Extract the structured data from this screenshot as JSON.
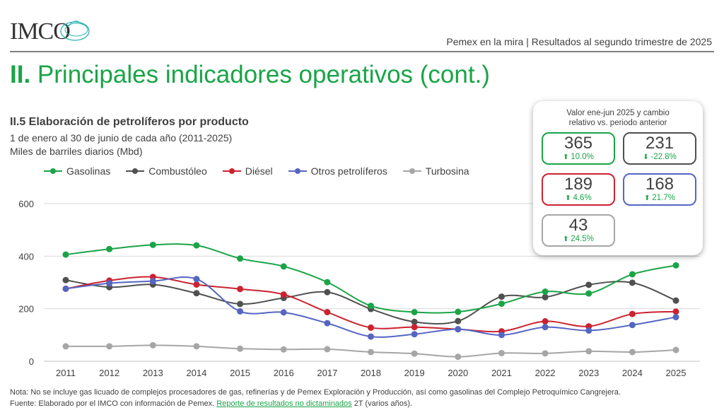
{
  "header": {
    "logo_text": "IMCO",
    "report_title": "Pemex en la mira | Resultados al segundo trimestre de 2025",
    "section_number": "II.",
    "section_title": " Principales indicadores operativos (cont.)"
  },
  "chart_data": {
    "type": "line",
    "title": "II.5 Elaboración de petrolíferos por producto",
    "subtitle_1": "1 de enero al 30 de junio de cada año (2011-2025)",
    "subtitle_2": "Miles de barriles diarios (Mbd)",
    "x": [
      "2011",
      "2012",
      "2013",
      "2014",
      "2015",
      "2016",
      "2017",
      "2018",
      "2019",
      "2020",
      "2021",
      "2022",
      "2023",
      "2024",
      "2025"
    ],
    "ylim": [
      0,
      600
    ],
    "yticks": [
      0,
      200,
      400,
      600
    ],
    "grid": true,
    "legend": "top-left",
    "series": [
      {
        "name": "Gasolinas",
        "color": "#1aa447",
        "values": [
          406,
          427,
          443,
          441,
          391,
          361,
          301,
          211,
          187,
          188,
          219,
          265,
          258,
          331,
          365
        ]
      },
      {
        "name": "Combustóleo",
        "color": "#505050",
        "values": [
          309,
          282,
          292,
          259,
          218,
          241,
          263,
          199,
          150,
          153,
          246,
          244,
          291,
          299,
          231
        ]
      },
      {
        "name": "Diésel",
        "color": "#cc2230",
        "values": [
          276,
          307,
          321,
          292,
          275,
          254,
          187,
          128,
          130,
          122,
          114,
          152,
          133,
          180,
          189
        ]
      },
      {
        "name": "Otros petrolíferos",
        "color": "#5566c2",
        "values": [
          276,
          297,
          305,
          313,
          190,
          186,
          145,
          94,
          103,
          122,
          100,
          130,
          117,
          138,
          168
        ]
      },
      {
        "name": "Turbosina",
        "color": "#a6a6a6",
        "values": [
          57,
          57,
          61,
          57,
          48,
          45,
          46,
          35,
          29,
          17,
          31,
          30,
          38,
          35,
          43
        ]
      }
    ]
  },
  "panel": {
    "title_1": "Valor ene-jun 2025 y cambio",
    "title_2": "relativo vs. periodo anterior",
    "boxes": [
      {
        "value": "365",
        "change": "10.0%",
        "arrow": "⬆",
        "color": "#1aa447"
      },
      {
        "value": "231",
        "change": "-22.8%",
        "arrow": "⬇",
        "color": "#505050"
      },
      {
        "value": "189",
        "change": "4.6%",
        "arrow": "⬆",
        "color": "#cc2230"
      },
      {
        "value": "168",
        "change": "21.7%",
        "arrow": "⬆",
        "color": "#5566c2"
      },
      {
        "value": "43",
        "change": "24.5%",
        "arrow": "⬆",
        "color": "#a6a6a6"
      }
    ]
  },
  "notes": {
    "nota": "Nota: No se incluye gas licuado de complejos procesadores de gas, refinerías y de Pemex Exploración y Producción, así como gasolinas del Complejo Petroquímico Cangrejera.",
    "fuente_pre": "Fuente: Elaborado por el IMCO con información de Pemex. ",
    "fuente_link": "Reporte de resultados no dictaminados",
    "fuente_post": " 2T (varios años)."
  }
}
